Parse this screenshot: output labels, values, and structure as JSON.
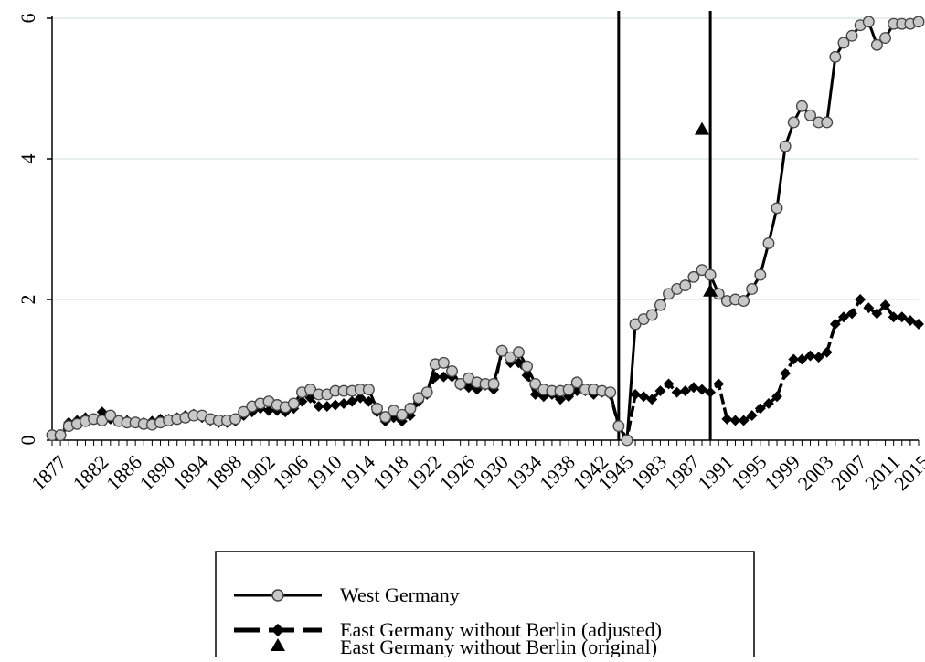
{
  "chart_data": {
    "type": "line",
    "title": "",
    "xlabel": "",
    "ylabel": "",
    "ylim": [
      0,
      6
    ],
    "y_ticks": [
      "0",
      "2",
      "4",
      "6"
    ],
    "grid": "horizontal",
    "x_tick_labels": [
      "1877",
      "1882",
      "1886",
      "1890",
      "1894",
      "1898",
      "1902",
      "1906",
      "1910",
      "1914",
      "1918",
      "1922",
      "1926",
      "1930",
      "1934",
      "1938",
      "1942",
      "1945",
      "1983",
      "1987",
      "1991",
      "1995",
      "1999",
      "2003",
      "2007",
      "2011",
      "2015"
    ],
    "x_tick_years": [
      1877,
      1882,
      1886,
      1890,
      1894,
      1898,
      1902,
      1906,
      1910,
      1914,
      1918,
      1922,
      1926,
      1930,
      1934,
      1938,
      1942,
      1945,
      1983,
      1987,
      1991,
      1995,
      1999,
      2003,
      2007,
      2011,
      2015
    ],
    "x": [
      1877,
      1878,
      1879,
      1880,
      1881,
      1882,
      1883,
      1884,
      1885,
      1886,
      1887,
      1888,
      1889,
      1890,
      1891,
      1892,
      1893,
      1894,
      1895,
      1896,
      1897,
      1898,
      1899,
      1900,
      1901,
      1902,
      1903,
      1904,
      1905,
      1906,
      1907,
      1908,
      1909,
      1910,
      1911,
      1912,
      1913,
      1914,
      1915,
      1916,
      1917,
      1918,
      1919,
      1920,
      1921,
      1922,
      1923,
      1924,
      1925,
      1926,
      1927,
      1928,
      1929,
      1930,
      1931,
      1932,
      1933,
      1934,
      1935,
      1936,
      1937,
      1938,
      1939,
      1940,
      1941,
      1942,
      1943,
      1944,
      1945,
      1980,
      1981,
      1982,
      1983,
      1984,
      1985,
      1986,
      1987,
      1988,
      1989,
      1990,
      1991,
      1992,
      1993,
      1994,
      1995,
      1996,
      1997,
      1998,
      1999,
      2000,
      2001,
      2002,
      2003,
      2004,
      2005,
      2006,
      2007,
      2008,
      2009,
      2010,
      2011,
      2012,
      2013,
      2014,
      2015
    ],
    "series": [
      {
        "name": "West Germany",
        "style": "solid line, grey circle markers",
        "color": "#000000",
        "marker_fill": "#c8c8c8",
        "values": [
          0.07,
          0.07,
          0.2,
          0.23,
          0.27,
          0.3,
          0.28,
          0.35,
          0.27,
          0.25,
          0.25,
          0.23,
          0.22,
          0.25,
          0.28,
          0.3,
          0.32,
          0.35,
          0.35,
          0.3,
          0.28,
          0.28,
          0.3,
          0.4,
          0.48,
          0.52,
          0.55,
          0.5,
          0.47,
          0.52,
          0.68,
          0.72,
          0.65,
          0.65,
          0.7,
          0.7,
          0.7,
          0.72,
          0.72,
          0.45,
          0.33,
          0.42,
          0.36,
          0.45,
          0.6,
          0.68,
          1.08,
          1.1,
          0.98,
          0.8,
          0.88,
          0.82,
          0.8,
          0.8,
          1.27,
          1.18,
          1.25,
          1.05,
          0.8,
          0.72,
          0.7,
          0.7,
          0.72,
          0.82,
          0.72,
          0.72,
          0.7,
          0.68,
          0.2,
          0.0,
          1.65,
          1.72,
          1.78,
          1.92,
          2.08,
          2.15,
          2.2,
          2.32,
          2.42,
          2.35,
          2.08,
          1.98,
          2.0,
          1.98,
          2.15,
          2.35,
          2.8,
          3.3,
          4.18,
          4.52,
          4.75,
          4.62,
          4.52,
          4.52,
          5.45,
          5.65,
          5.75,
          5.9,
          5.95,
          5.62,
          5.72,
          5.92,
          5.92,
          5.92,
          5.95
        ]
      },
      {
        "name": "East Germany without Berlin (adjusted)",
        "style": "dashed line, black diamond markers",
        "color": "#000000",
        "values": [
          0.07,
          0.07,
          0.25,
          0.28,
          0.32,
          0.3,
          0.4,
          0.3,
          0.27,
          0.28,
          0.25,
          0.25,
          0.27,
          0.3,
          0.3,
          0.32,
          0.35,
          0.37,
          0.32,
          0.28,
          0.25,
          0.25,
          0.27,
          0.35,
          0.4,
          0.45,
          0.42,
          0.42,
          0.4,
          0.45,
          0.55,
          0.6,
          0.48,
          0.48,
          0.5,
          0.52,
          0.55,
          0.6,
          0.55,
          0.4,
          0.27,
          0.32,
          0.27,
          0.35,
          0.55,
          0.65,
          0.9,
          0.9,
          0.9,
          0.78,
          0.75,
          0.72,
          0.78,
          0.72,
          1.28,
          1.1,
          1.1,
          0.92,
          0.65,
          0.62,
          0.65,
          0.58,
          0.62,
          0.7,
          0.7,
          0.65,
          0.68,
          0.65,
          0.2,
          0.02,
          0.65,
          0.62,
          0.58,
          0.7,
          0.8,
          0.68,
          0.7,
          0.75,
          0.72,
          0.68,
          0.8,
          0.3,
          0.28,
          0.28,
          0.35,
          0.45,
          0.52,
          0.62,
          0.95,
          1.15,
          1.15,
          1.2,
          1.18,
          1.25,
          1.65,
          1.75,
          1.8,
          2.0,
          1.88,
          1.8,
          1.92,
          1.75,
          1.75,
          1.7,
          1.65
        ]
      },
      {
        "name": "East Germany without Berlin (original)",
        "style": "black triangle markers",
        "color": "#000000",
        "points": [
          {
            "x": 1989,
            "y": 4.42
          },
          {
            "x": 1990,
            "y": 2.12
          }
        ]
      }
    ],
    "vertical_lines": [
      1945,
      1990
    ],
    "legend": {
      "placement": "bottom-center",
      "entries": [
        "West Germany",
        "East Germany without Berlin (adjusted)",
        "East Germany without Berlin (original)"
      ]
    }
  }
}
